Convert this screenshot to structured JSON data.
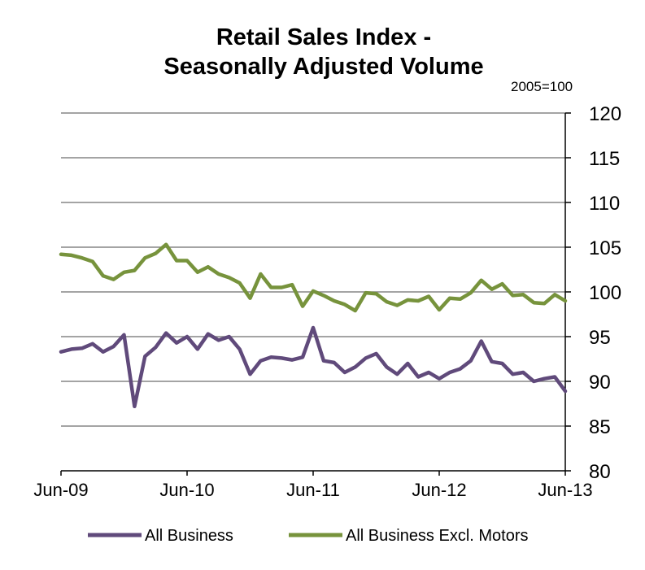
{
  "chart_data": {
    "type": "line",
    "title_lines": [
      "Retail Sales Index -",
      "Seasonally Adjusted Volume"
    ],
    "unit_label": "2005=100",
    "ylim": [
      80,
      120
    ],
    "y_ticks": [
      80,
      85,
      90,
      95,
      100,
      105,
      110,
      115,
      120
    ],
    "y_tick_labels": [
      "80",
      "85",
      "90",
      "95",
      "100",
      "105",
      "110",
      "115",
      "120"
    ],
    "y_axis_position": "right",
    "grid": true,
    "x_tick_labels": [
      "Jun-09",
      "Jun-10",
      "Jun-11",
      "Jun-12",
      "Jun-13"
    ],
    "x": [
      "Jun-09",
      "Jul-09",
      "Aug-09",
      "Sep-09",
      "Oct-09",
      "Nov-09",
      "Dec-09",
      "Jan-10",
      "Feb-10",
      "Mar-10",
      "Apr-10",
      "May-10",
      "Jun-10",
      "Jul-10",
      "Aug-10",
      "Sep-10",
      "Oct-10",
      "Nov-10",
      "Dec-10",
      "Jan-11",
      "Feb-11",
      "Mar-11",
      "Apr-11",
      "May-11",
      "Jun-11",
      "Jul-11",
      "Aug-11",
      "Sep-11",
      "Oct-11",
      "Nov-11",
      "Dec-11",
      "Jan-12",
      "Feb-12",
      "Mar-12",
      "Apr-12",
      "May-12",
      "Jun-12",
      "Jul-12",
      "Aug-12",
      "Sep-12",
      "Oct-12",
      "Nov-12",
      "Dec-12",
      "Jan-13",
      "Feb-13",
      "Mar-13",
      "Apr-13",
      "May-13",
      "Jun-13"
    ],
    "series": [
      {
        "name": "All Business",
        "color": "#604A7B",
        "values": [
          93.3,
          93.6,
          93.7,
          94.2,
          93.3,
          93.9,
          95.2,
          87.2,
          92.8,
          93.8,
          95.4,
          94.3,
          95.0,
          93.6,
          95.3,
          94.6,
          95.0,
          93.6,
          90.8,
          92.3,
          92.7,
          92.6,
          92.4,
          92.7,
          96.0,
          92.3,
          92.1,
          91.0,
          91.6,
          92.6,
          93.1,
          91.6,
          90.8,
          92.0,
          90.5,
          91.0,
          90.3,
          91.0,
          91.4,
          92.3,
          94.5,
          92.2,
          92.0,
          90.8,
          91.0,
          90.0,
          90.3,
          90.5,
          88.9
        ]
      },
      {
        "name": "All Business Excl. Motors",
        "color": "#77933C",
        "values": [
          104.2,
          104.1,
          103.8,
          103.4,
          101.8,
          101.4,
          102.2,
          102.4,
          103.8,
          104.3,
          105.3,
          103.5,
          103.5,
          102.2,
          102.8,
          102.0,
          101.6,
          101.0,
          99.3,
          102.0,
          100.5,
          100.5,
          100.8,
          98.4,
          100.1,
          99.6,
          99.0,
          98.6,
          97.9,
          99.9,
          99.8,
          98.9,
          98.5,
          99.1,
          99.0,
          99.5,
          98.0,
          99.3,
          99.2,
          99.9,
          101.3,
          100.3,
          100.9,
          99.6,
          99.7,
          98.8,
          98.7,
          99.7,
          99.0
        ]
      }
    ],
    "legend_position": "bottom"
  }
}
